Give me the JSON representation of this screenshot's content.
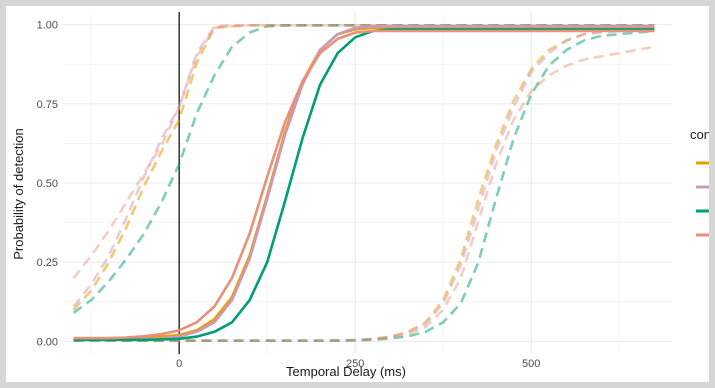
{
  "chart_data": {
    "type": "line",
    "title": "",
    "xlabel": "Temporal Delay (ms)",
    "ylabel": "Probability of detection",
    "xlim": [
      -165,
      700
    ],
    "ylim": [
      -0.04,
      1.04
    ],
    "x_ticks": [
      0,
      250,
      500
    ],
    "x_tick_labels": [
      "0",
      "250",
      "500"
    ],
    "y_ticks": [
      0,
      0.25,
      0.5,
      0.75,
      1.0
    ],
    "y_tick_labels": [
      "0.00",
      "0.25",
      "0.50",
      "0.75",
      "1.00"
    ],
    "grid": true,
    "reference_line_x": 0,
    "legend": {
      "title": "cond",
      "position": "right",
      "entries": 4
    },
    "colors": [
      "#E69F00",
      "#CC99BB",
      "#009E73",
      "#E8907A"
    ],
    "x": [
      -150,
      -125,
      -100,
      -75,
      -50,
      -25,
      0,
      25,
      50,
      75,
      100,
      125,
      150,
      175,
      200,
      225,
      250,
      275,
      300,
      325,
      350,
      375,
      400,
      425,
      450,
      475,
      500,
      525,
      550,
      575,
      600,
      625,
      650,
      675
    ],
    "series": [
      {
        "color": "#E69F00",
        "dashed": false,
        "opacity": 1,
        "values": [
          0.01,
          0.01,
          0.01,
          0.011,
          0.013,
          0.015,
          0.02,
          0.035,
          0.07,
          0.14,
          0.27,
          0.46,
          0.66,
          0.82,
          0.92,
          0.97,
          0.985,
          0.99,
          0.99,
          0.99,
          0.99,
          0.99,
          0.99,
          0.99,
          0.99,
          0.99,
          0.99,
          0.99,
          0.99,
          0.99,
          0.99,
          0.99,
          0.99,
          0.99
        ]
      },
      {
        "color": "#CC99BB",
        "dashed": false,
        "opacity": 1,
        "values": [
          0.005,
          0.005,
          0.005,
          0.006,
          0.007,
          0.009,
          0.015,
          0.03,
          0.06,
          0.13,
          0.26,
          0.45,
          0.65,
          0.81,
          0.92,
          0.97,
          0.99,
          0.995,
          0.995,
          0.995,
          0.995,
          0.995,
          0.995,
          0.995,
          0.995,
          0.995,
          0.995,
          0.995,
          0.995,
          0.995,
          0.995,
          0.995,
          0.995,
          0.995
        ]
      },
      {
        "color": "#009E73",
        "dashed": false,
        "opacity": 1,
        "values": [
          0.005,
          0.005,
          0.005,
          0.005,
          0.005,
          0.006,
          0.008,
          0.015,
          0.03,
          0.06,
          0.13,
          0.25,
          0.44,
          0.64,
          0.81,
          0.91,
          0.96,
          0.98,
          0.985,
          0.985,
          0.985,
          0.985,
          0.985,
          0.985,
          0.985,
          0.985,
          0.985,
          0.985,
          0.985,
          0.985,
          0.985,
          0.985,
          0.985,
          0.985
        ]
      },
      {
        "color": "#E8907A",
        "dashed": false,
        "opacity": 1,
        "values": [
          0.01,
          0.01,
          0.01,
          0.012,
          0.016,
          0.023,
          0.035,
          0.06,
          0.11,
          0.2,
          0.34,
          0.52,
          0.69,
          0.82,
          0.91,
          0.955,
          0.975,
          0.98,
          0.98,
          0.98,
          0.98,
          0.98,
          0.98,
          0.98,
          0.98,
          0.98,
          0.98,
          0.98,
          0.98,
          0.98,
          0.98,
          0.98,
          0.98,
          0.98
        ]
      },
      {
        "color": "#E69F00",
        "dashed": true,
        "opacity": 0.55,
        "values": [
          0.1,
          0.16,
          0.25,
          0.36,
          0.49,
          0.6,
          0.7,
          0.88,
          0.99,
          0.995,
          0.998,
          0.998,
          0.998,
          0.998,
          0.998,
          0.998,
          0.998,
          0.998,
          0.998,
          0.998,
          0.998,
          0.998,
          0.998,
          0.998,
          0.998,
          0.998,
          0.998,
          0.998,
          0.998,
          0.998,
          0.998,
          0.998,
          0.998,
          0.998
        ]
      },
      {
        "color": "#CC99BB",
        "dashed": true,
        "opacity": 0.5,
        "values": [
          0.11,
          0.18,
          0.27,
          0.39,
          0.52,
          0.64,
          0.74,
          0.91,
          0.995,
          0.998,
          0.998,
          0.998,
          0.998,
          0.998,
          0.998,
          0.998,
          0.998,
          0.998,
          0.998,
          0.998,
          0.998,
          0.998,
          0.998,
          0.998,
          0.998,
          0.998,
          0.998,
          0.998,
          0.998,
          0.998,
          0.998,
          0.998,
          0.998,
          0.998
        ]
      },
      {
        "color": "#009E73",
        "dashed": true,
        "opacity": 0.5,
        "values": [
          0.09,
          0.13,
          0.19,
          0.26,
          0.34,
          0.44,
          0.56,
          0.72,
          0.84,
          0.93,
          0.975,
          0.995,
          0.998,
          0.998,
          0.998,
          0.998,
          0.998,
          0.998,
          0.998,
          0.998,
          0.998,
          0.998,
          0.998,
          0.998,
          0.998,
          0.998,
          0.998,
          0.998,
          0.998,
          0.998,
          0.998,
          0.998,
          0.998,
          0.998
        ]
      },
      {
        "color": "#E8907A",
        "dashed": true,
        "opacity": 0.45,
        "values": [
          0.2,
          0.27,
          0.35,
          0.44,
          0.53,
          0.62,
          0.74,
          0.9,
          0.99,
          0.995,
          0.998,
          0.998,
          0.998,
          0.998,
          0.998,
          0.998,
          0.998,
          0.998,
          0.998,
          0.998,
          0.998,
          0.998,
          0.998,
          0.998,
          0.998,
          0.998,
          0.998,
          0.998,
          0.998,
          0.998,
          0.998,
          0.998,
          0.998,
          0.998
        ]
      },
      {
        "color": "#E69F00",
        "dashed": true,
        "opacity": 0.5,
        "values": [
          0.002,
          0.002,
          0.002,
          0.002,
          0.002,
          0.002,
          0.002,
          0.002,
          0.002,
          0.002,
          0.002,
          0.002,
          0.002,
          0.002,
          0.002,
          0.003,
          0.004,
          0.008,
          0.015,
          0.03,
          0.06,
          0.13,
          0.26,
          0.45,
          0.62,
          0.76,
          0.86,
          0.92,
          0.95,
          0.97,
          0.98,
          0.985,
          0.99,
          0.99
        ]
      },
      {
        "color": "#CC99BB",
        "dashed": true,
        "opacity": 0.5,
        "values": [
          0.002,
          0.002,
          0.002,
          0.002,
          0.002,
          0.002,
          0.002,
          0.002,
          0.002,
          0.002,
          0.002,
          0.002,
          0.002,
          0.002,
          0.002,
          0.003,
          0.004,
          0.007,
          0.014,
          0.028,
          0.055,
          0.12,
          0.24,
          0.42,
          0.6,
          0.74,
          0.85,
          0.91,
          0.95,
          0.97,
          0.975,
          0.98,
          0.985,
          0.99
        ]
      },
      {
        "color": "#009E73",
        "dashed": true,
        "opacity": 0.5,
        "values": [
          0.002,
          0.002,
          0.002,
          0.002,
          0.002,
          0.002,
          0.002,
          0.002,
          0.002,
          0.002,
          0.002,
          0.002,
          0.002,
          0.002,
          0.002,
          0.002,
          0.003,
          0.005,
          0.009,
          0.016,
          0.03,
          0.06,
          0.12,
          0.25,
          0.45,
          0.64,
          0.78,
          0.87,
          0.92,
          0.95,
          0.965,
          0.97,
          0.975,
          0.98
        ]
      },
      {
        "color": "#E8907A",
        "dashed": true,
        "opacity": 0.45,
        "values": [
          0.002,
          0.002,
          0.002,
          0.002,
          0.002,
          0.002,
          0.002,
          0.002,
          0.002,
          0.002,
          0.002,
          0.002,
          0.002,
          0.002,
          0.002,
          0.003,
          0.004,
          0.006,
          0.012,
          0.022,
          0.045,
          0.1,
          0.2,
          0.38,
          0.56,
          0.7,
          0.79,
          0.84,
          0.87,
          0.89,
          0.9,
          0.91,
          0.92,
          0.93
        ]
      }
    ]
  }
}
